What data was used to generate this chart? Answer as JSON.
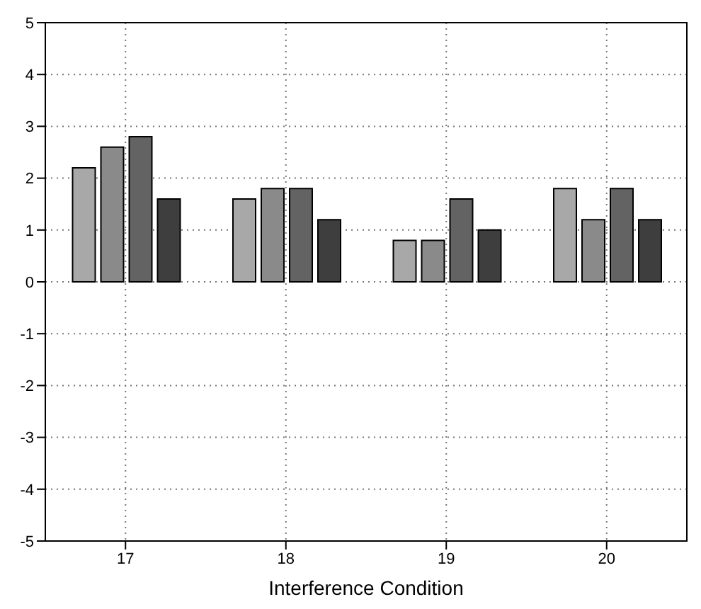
{
  "chart_data": {
    "type": "bar",
    "xlabel": "Interference Condition",
    "categories": [
      "17",
      "18",
      "19",
      "20"
    ],
    "series": [
      {
        "color": "#a8a8a8",
        "values": [
          2.2,
          1.6,
          0.8,
          1.8
        ]
      },
      {
        "color": "#8a8a8a",
        "values": [
          2.6,
          1.8,
          0.8,
          1.2
        ]
      },
      {
        "color": "#636363",
        "values": [
          2.8,
          1.8,
          1.6,
          1.8
        ]
      },
      {
        "color": "#3e3e3e",
        "values": [
          1.6,
          1.2,
          1.0,
          1.2
        ]
      }
    ],
    "ylim": [
      -5,
      5
    ],
    "yticks": [
      -5,
      -4,
      -3,
      -2,
      -1,
      0,
      1,
      2,
      3,
      4,
      5
    ],
    "grid": true
  }
}
